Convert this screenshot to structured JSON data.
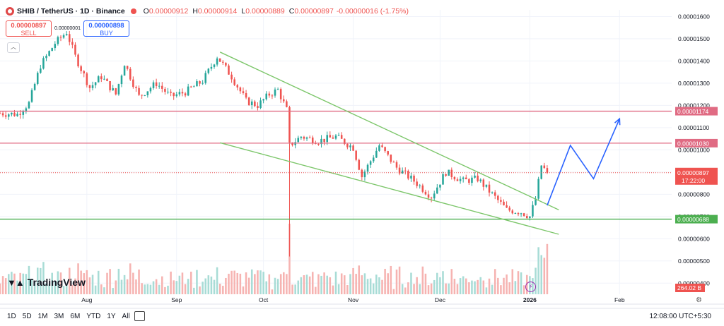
{
  "header": {
    "symbol": "SHIB / TetherUS · 1D · Binance",
    "open_label": "O",
    "open": "0.00000912",
    "high_label": "H",
    "high": "0.00000914",
    "low_label": "L",
    "low": "0.00000889",
    "close_label": "C",
    "close": "0.00000897",
    "change": "-0.00000016 (-1.75%)"
  },
  "trade": {
    "sell_price": "0.00000897",
    "sell_label": "SELL",
    "buy_price": "0.00000898",
    "buy_label": "BUY",
    "spread": "0.00000001"
  },
  "branding": {
    "logo_text": "TradingView"
  },
  "timeframes": [
    "1D",
    "5D",
    "1M",
    "3M",
    "6M",
    "YTD",
    "1Y",
    "All"
  ],
  "clock": "12:08:00 UTC+5:30",
  "colors": {
    "up": "#26a69a",
    "down": "#ef5350",
    "resistance": "#e06b83",
    "support": "#4caf50",
    "wedge": "#7cc66a",
    "projection": "#2962ff",
    "grid": "#f0f3fa"
  },
  "icons": {
    "coin": "shib-coin-icon",
    "collapse": "chevron-up-icon",
    "calendar": "calendar-icon",
    "alert": "lightning-icon",
    "settings": "gear-icon"
  },
  "chart_data": {
    "type": "candlestick",
    "title": "SHIB / TetherUS · 1D · Binance",
    "y_tick_labels": [
      "0.00001600",
      "0.00001500",
      "0.00001400",
      "0.00001300",
      "0.00001200",
      "0.00001100",
      "0.00001000",
      "0.00000900",
      "0.00000800",
      "0.00000700",
      "0.00000600",
      "0.00000500",
      "0.00000400"
    ],
    "ylim": [
      3.5e-06,
      1.63e-05
    ],
    "x_tick_labels": [
      "Aug",
      "Sep",
      "Oct",
      "Nov",
      "Dec",
      "2026",
      "Feb"
    ],
    "x_tick_dates": [
      "2025-08-01",
      "2025-09-01",
      "2025-10-01",
      "2025-11-01",
      "2025-12-01",
      "2026-01-01",
      "2026-02-01"
    ],
    "x_range": [
      "2025-07-02",
      "2026-02-19"
    ],
    "last_date": "2026-01-07",
    "horizontal_levels": [
      {
        "value": 1.174e-05,
        "label": "0.00001174",
        "role": "resistance"
      },
      {
        "value": 1.03e-05,
        "label": "0.00001030",
        "role": "resistance"
      },
      {
        "value": 6.88e-06,
        "label": "0.00000688",
        "role": "support"
      }
    ],
    "last_price": {
      "value": 8.97e-06,
      "label": "0.00000897",
      "countdown": "17:22:00"
    },
    "volume_last": "264.02 B",
    "trendlines": [
      {
        "name": "wedge-upper",
        "from": [
          "2025-09-16",
          1.44e-05
        ],
        "to": [
          "2026-01-11",
          7.3e-06
        ]
      },
      {
        "name": "wedge-lower",
        "from": [
          "2025-09-16",
          1.032e-05
        ],
        "to": [
          "2026-01-11",
          6.2e-06
        ]
      }
    ],
    "projection_path": [
      [
        "2026-01-07",
        7.5e-06
      ],
      [
        "2026-01-15",
        1.02e-05
      ],
      [
        "2026-01-23",
        8.7e-06
      ],
      [
        "2026-02-01",
        1.14e-05
      ]
    ],
    "anchors": [
      [
        "2025-07-02",
        1.165e-05
      ],
      [
        "2025-07-08",
        1.16e-05
      ],
      [
        "2025-07-12",
        1.21e-05
      ],
      [
        "2025-07-16",
        1.38e-05
      ],
      [
        "2025-07-21",
        1.48e-05
      ],
      [
        "2025-07-25",
        1.53e-05
      ],
      [
        "2025-07-28",
        1.42e-05
      ],
      [
        "2025-08-02",
        1.28e-05
      ],
      [
        "2025-08-06",
        1.33e-05
      ],
      [
        "2025-08-11",
        1.25e-05
      ],
      [
        "2025-08-14",
        1.39e-05
      ],
      [
        "2025-08-19",
        1.24e-05
      ],
      [
        "2025-08-25",
        1.3e-05
      ],
      [
        "2025-08-30",
        1.24e-05
      ],
      [
        "2025-09-04",
        1.26e-05
      ],
      [
        "2025-09-10",
        1.31e-05
      ],
      [
        "2025-09-15",
        1.42e-05
      ],
      [
        "2025-09-20",
        1.33e-05
      ],
      [
        "2025-09-25",
        1.22e-05
      ],
      [
        "2025-09-29",
        1.2e-05
      ],
      [
        "2025-10-03",
        1.25e-05
      ],
      [
        "2025-10-06",
        1.27e-05
      ],
      [
        "2025-10-09",
        1.18e-05
      ],
      [
        "2025-10-10",
        1.02e-05
      ],
      [
        "2025-10-14",
        1.06e-05
      ],
      [
        "2025-10-20",
        1.04e-05
      ],
      [
        "2025-10-26",
        1.06e-05
      ],
      [
        "2025-11-01",
        1.01e-05
      ],
      [
        "2025-11-04",
        8.8e-06
      ],
      [
        "2025-11-10",
        1.02e-05
      ],
      [
        "2025-11-16",
        9.2e-06
      ],
      [
        "2025-11-22",
        8.6e-06
      ],
      [
        "2025-11-28",
        7.9e-06
      ],
      [
        "2025-12-03",
        9e-06
      ],
      [
        "2025-12-09",
        8.6e-06
      ],
      [
        "2025-12-14",
        8.7e-06
      ],
      [
        "2025-12-19",
        8e-06
      ],
      [
        "2025-12-24",
        7.3e-06
      ],
      [
        "2025-12-29",
        7.2e-06
      ],
      [
        "2026-01-01",
        7e-06
      ],
      [
        "2026-01-03",
        7.8e-06
      ],
      [
        "2026-01-05",
        9.3e-06
      ],
      [
        "2026-01-07",
        8.97e-06
      ]
    ]
  }
}
